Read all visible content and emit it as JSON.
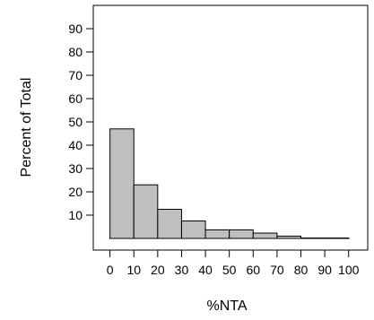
{
  "chart_data": {
    "type": "bar",
    "title": "",
    "xlabel": "%NTA",
    "ylabel": "Percent of Total",
    "xlim": [
      -7,
      108
    ],
    "ylim": [
      -5,
      100
    ],
    "x_ticks": [
      0,
      10,
      20,
      30,
      40,
      50,
      60,
      70,
      80,
      90,
      100
    ],
    "x_tick_labels": [
      "0",
      "10",
      "20",
      "30",
      "40",
      "50",
      "60",
      "70",
      "80",
      "90",
      "100"
    ],
    "y_ticks": [
      10,
      20,
      30,
      40,
      50,
      60,
      70,
      80,
      90
    ],
    "y_tick_labels": [
      "10",
      "20",
      "30",
      "40",
      "50",
      "60",
      "70",
      "80",
      "90"
    ],
    "bin_edges": [
      0,
      10,
      20,
      30,
      40,
      50,
      60,
      70,
      80,
      90,
      100
    ],
    "values": [
      47,
      23,
      12.5,
      7.5,
      3.7,
      3.7,
      2.3,
      1,
      0.2,
      0.2
    ],
    "bar_color": "#bfbfbf",
    "bar_edge_color": "#000000",
    "grid": false
  }
}
